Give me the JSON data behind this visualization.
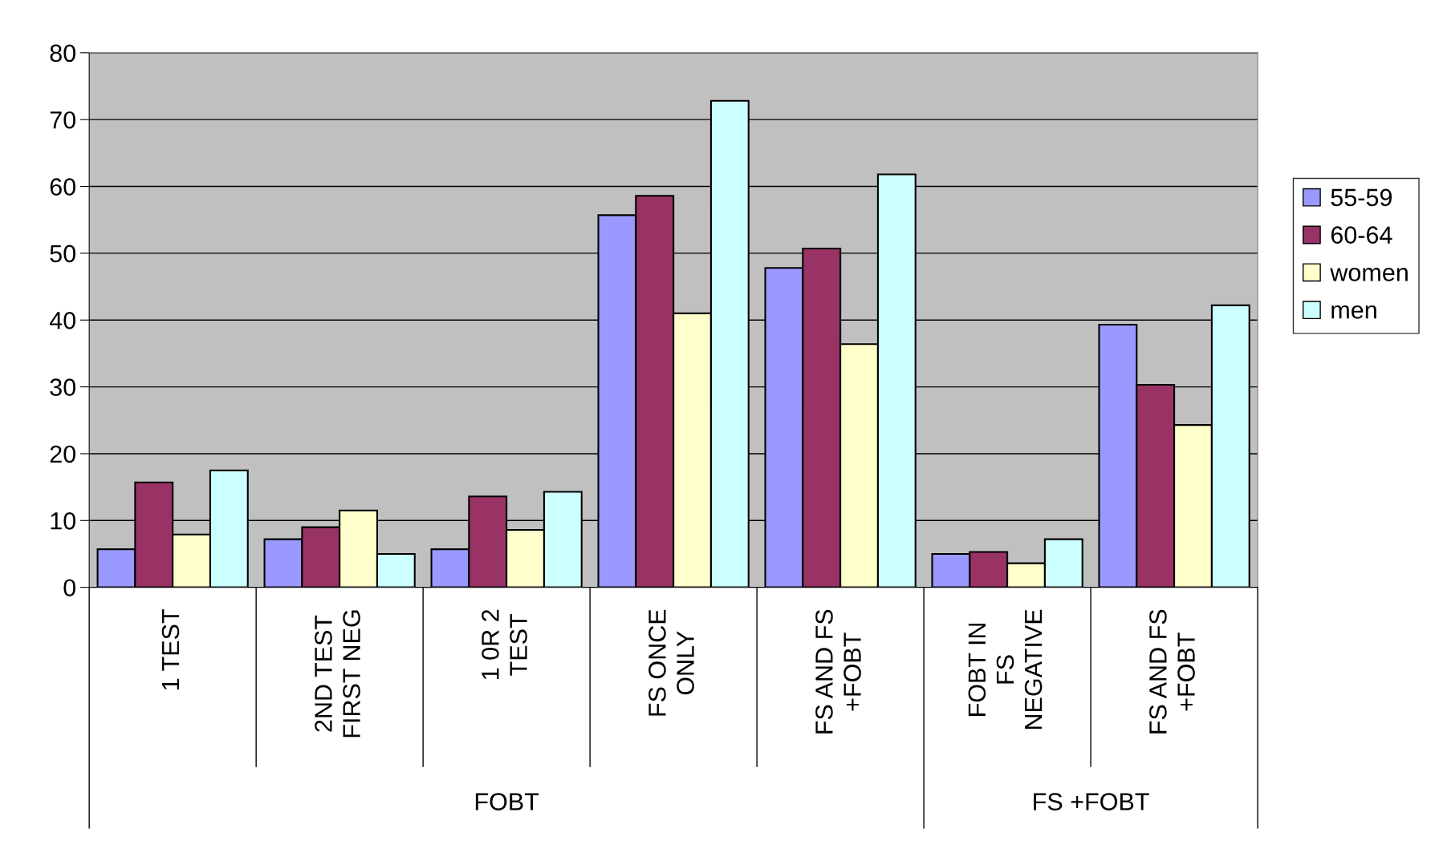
{
  "chart_data": {
    "type": "bar",
    "categories": [
      "1 TEST",
      "2ND TEST\nFIRST NEG",
      "1 0R 2\nTEST",
      "FS ONCE\nONLY",
      "FS AND FS\n+FOBT",
      "FOBT IN\nFS\nNEGATIVE",
      "FS AND FS\n+FOBT"
    ],
    "series": [
      {
        "name": "55-59",
        "color": "#9999ff",
        "values": [
          5.7,
          7.2,
          5.7,
          55.7,
          47.8,
          5.0,
          39.3
        ]
      },
      {
        "name": "60-64",
        "color": "#993366",
        "values": [
          15.7,
          9.0,
          13.6,
          58.6,
          50.7,
          5.3,
          30.3
        ]
      },
      {
        "name": "women",
        "color": "#ffffcc",
        "values": [
          7.9,
          11.5,
          8.6,
          41.0,
          36.4,
          3.6,
          24.3
        ]
      },
      {
        "name": "men",
        "color": "#ccffff",
        "values": [
          17.5,
          5.0,
          14.3,
          72.8,
          61.8,
          7.2,
          42.2
        ]
      }
    ],
    "annotations": [
      "FOBT",
      "FS +FOBT"
    ],
    "ylim": [
      0,
      80
    ],
    "yticks": [
      0,
      10,
      20,
      30,
      40,
      50,
      60,
      70,
      80
    ],
    "grid": "y",
    "legend": "right"
  }
}
